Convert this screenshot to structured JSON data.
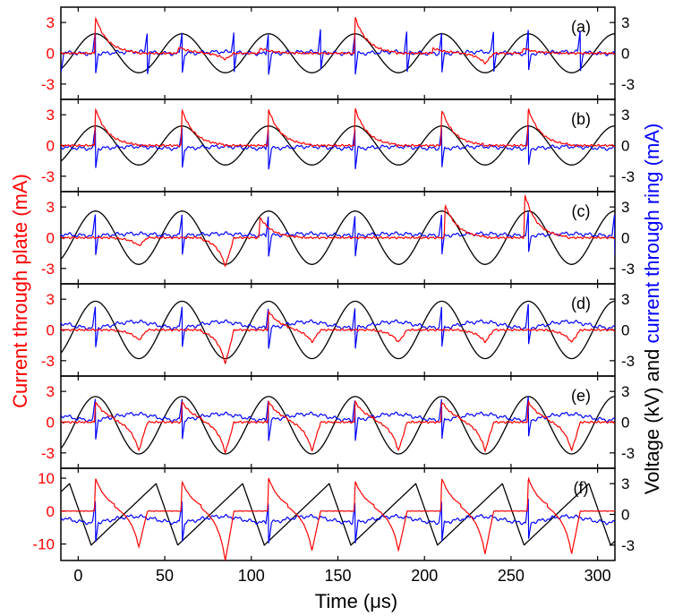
{
  "figure": {
    "xlabel": "Time (μs)",
    "ylabel_left": "Current through plate (mA)",
    "ylabel_right_part1": "Voltage (kV) and ",
    "ylabel_right_part2": "current through ring (mA)",
    "colors": {
      "plate_current": "#ff0000",
      "ring_current": "#0000ff",
      "voltage": "#000000",
      "axis": "#000000"
    }
  },
  "chart_data": [
    {
      "type": "line",
      "panel_label": "(a)",
      "x_range": [
        -10,
        310
      ],
      "x_ticks": [
        0,
        50,
        100,
        150,
        200,
        250,
        300
      ],
      "y_left": {
        "range": [
          -4.5,
          4.5
        ],
        "ticks": [
          3,
          0,
          -3
        ],
        "tick_labels": [
          "3",
          "0",
          "-3"
        ]
      },
      "y_right": {
        "range": [
          -4.5,
          4.5
        ],
        "ticks": [
          3,
          0,
          -3
        ],
        "tick_labels": [
          "3",
          "0",
          "-3"
        ]
      },
      "series": [
        {
          "role": "voltage",
          "color": "#000000",
          "period_us": 50,
          "phase_us": -2.5,
          "amplitude": 1.9,
          "offset": 0
        },
        {
          "role": "ring_current",
          "color": "#0000ff",
          "baseline": 0.05,
          "spikes_at_us": [
            -10,
            10,
            40,
            60,
            90,
            110,
            140,
            160,
            190,
            210,
            240,
            260,
            290
          ]
        },
        {
          "role": "plate_current",
          "color": "#ff0000",
          "peaks": [
            [
              10,
              3.5
            ],
            [
              58,
              0.6
            ],
            [
              105,
              0.5
            ],
            [
              160,
              3.5
            ],
            [
              205,
              0.5
            ],
            [
              257,
              0.5
            ]
          ],
          "dips": [
            [
              85,
              -0.6
            ],
            [
              235,
              -1.0
            ]
          ]
        }
      ]
    },
    {
      "type": "line",
      "panel_label": "(b)",
      "x_range": [
        -10,
        310
      ],
      "x_ticks": [
        0,
        50,
        100,
        150,
        200,
        250,
        300
      ],
      "y_left": {
        "range": [
          -4.5,
          4.5
        ],
        "ticks": [
          3,
          0,
          -3
        ],
        "tick_labels": [
          "3",
          "0",
          "-3"
        ]
      },
      "y_right": {
        "range": [
          -4.5,
          4.5
        ],
        "ticks": [
          3,
          0,
          -3
        ],
        "tick_labels": [
          "3",
          "0",
          "-3"
        ]
      },
      "series": [
        {
          "role": "voltage",
          "color": "#000000",
          "period_us": 50,
          "phase_us": -2.5,
          "amplitude": 1.9,
          "offset": 0
        },
        {
          "role": "ring_current",
          "color": "#0000ff",
          "baseline": -0.2,
          "spikes_at_us": [
            10,
            60,
            110,
            160,
            210,
            260
          ]
        },
        {
          "role": "plate_current",
          "color": "#ff0000",
          "peaks": [
            [
              10,
              3.6
            ],
            [
              60,
              3.5
            ],
            [
              110,
              3.5
            ],
            [
              160,
              3.6
            ],
            [
              210,
              3.5
            ],
            [
              260,
              3.6
            ]
          ]
        }
      ]
    },
    {
      "type": "line",
      "panel_label": "(c)",
      "x_range": [
        -10,
        310
      ],
      "x_ticks": [
        0,
        50,
        100,
        150,
        200,
        250,
        300
      ],
      "y_left": {
        "range": [
          -4.5,
          4.5
        ],
        "ticks": [
          3,
          0,
          -3
        ],
        "tick_labels": [
          "3",
          "0",
          "-3"
        ]
      },
      "y_right": {
        "range": [
          -4.5,
          4.5
        ],
        "ticks": [
          3,
          0,
          -3
        ],
        "tick_labels": [
          "3",
          "0",
          "-3"
        ]
      },
      "series": [
        {
          "role": "voltage",
          "color": "#000000",
          "period_us": 50,
          "phase_us": -2.5,
          "amplitude": 2.6,
          "offset": 0
        },
        {
          "role": "ring_current",
          "color": "#0000ff",
          "baseline": 0.3,
          "spikes_at_us": [
            10,
            60,
            110,
            160,
            210,
            260,
            310
          ]
        },
        {
          "role": "plate_current",
          "color": "#ff0000",
          "peaks": [
            [
              105,
              2.0
            ],
            [
              212,
              3.2
            ],
            [
              258,
              4.2
            ]
          ],
          "dips": [
            [
              35,
              -0.8
            ],
            [
              85,
              -2.8
            ]
          ]
        }
      ]
    },
    {
      "type": "line",
      "panel_label": "(d)",
      "x_range": [
        -10,
        310
      ],
      "x_ticks": [
        0,
        50,
        100,
        150,
        200,
        250,
        300
      ],
      "y_left": {
        "range": [
          -4.5,
          4.5
        ],
        "ticks": [
          3,
          0,
          -3
        ],
        "tick_labels": [
          "3",
          "0",
          "-3"
        ]
      },
      "y_right": {
        "range": [
          -4.5,
          4.5
        ],
        "ticks": [
          3,
          0,
          -3
        ],
        "tick_labels": [
          "3",
          "0",
          "-3"
        ]
      },
      "series": [
        {
          "role": "voltage",
          "color": "#000000",
          "period_us": 50,
          "phase_us": -2.5,
          "amplitude": 2.8,
          "offset": 0
        },
        {
          "role": "ring_current",
          "color": "#0000ff",
          "baseline": 0.5,
          "spikes_at_us": [
            10,
            60,
            110,
            160,
            210,
            260
          ]
        },
        {
          "role": "plate_current",
          "color": "#ff0000",
          "peaks": [
            [
              110,
              1.8
            ]
          ],
          "dips": [
            [
              35,
              -1.0
            ],
            [
              85,
              -3.3
            ],
            [
              135,
              -1.2
            ],
            [
              185,
              -1.2
            ],
            [
              235,
              -1.2
            ],
            [
              285,
              -1.2
            ]
          ]
        }
      ]
    },
    {
      "type": "line",
      "panel_label": "(e)",
      "x_range": [
        -10,
        310
      ],
      "x_ticks": [
        0,
        50,
        100,
        150,
        200,
        250,
        300
      ],
      "y_left": {
        "range": [
          -4.5,
          4.5
        ],
        "ticks": [
          3,
          0,
          -3
        ],
        "tick_labels": [
          "3",
          "0",
          "-3"
        ]
      },
      "y_right": {
        "range": [
          -4.5,
          4.5
        ],
        "ticks": [
          3,
          0,
          -3
        ],
        "tick_labels": [
          "3",
          "0",
          "-3"
        ]
      },
      "series": [
        {
          "role": "voltage",
          "color": "#000000",
          "period_us": 50,
          "phase_us": -2.5,
          "amplitude": 2.8,
          "offset": -0.3
        },
        {
          "role": "ring_current",
          "color": "#0000ff",
          "baseline": 0.5,
          "spikes_at_us": [
            10,
            60,
            110,
            160,
            210,
            260
          ]
        },
        {
          "role": "plate_current",
          "color": "#ff0000",
          "peaks": [
            [
              10,
              2.0
            ],
            [
              60,
              2.0
            ],
            [
              110,
              2.0
            ],
            [
              160,
              2.0
            ],
            [
              210,
              2.0
            ],
            [
              260,
              2.0
            ]
          ],
          "dips": [
            [
              35,
              -2.8
            ],
            [
              85,
              -3.0
            ],
            [
              135,
              -2.8
            ],
            [
              185,
              -2.8
            ],
            [
              235,
              -2.8
            ],
            [
              285,
              -2.8
            ]
          ]
        }
      ]
    },
    {
      "type": "line",
      "panel_label": "(f)",
      "x_range": [
        -10,
        310
      ],
      "x_ticks": [
        0,
        50,
        100,
        150,
        200,
        250,
        300
      ],
      "y_left": {
        "range": [
          -15,
          13
        ],
        "ticks": [
          10,
          0,
          -10
        ],
        "tick_labels": [
          "10",
          "0",
          "-10"
        ]
      },
      "y_right": {
        "range": [
          -4.5,
          4.5
        ],
        "ticks": [
          3,
          0,
          -3
        ],
        "tick_labels": [
          "3",
          "0",
          "-3"
        ]
      },
      "series": [
        {
          "role": "voltage",
          "color": "#000000",
          "period_us": 50,
          "phase_us": -2.5,
          "amplitude": 3.0,
          "offset": 0,
          "shape": "sawtooth"
        },
        {
          "role": "ring_current",
          "color": "#0000ff",
          "baseline": -0.5,
          "spikes_at_us": [
            10,
            60,
            110,
            160,
            210,
            260
          ]
        },
        {
          "role": "plate_current",
          "color": "#ff0000",
          "peaks": [
            [
              10,
              10
            ],
            [
              60,
              9
            ],
            [
              110,
              10
            ],
            [
              160,
              9
            ],
            [
              210,
              10
            ],
            [
              260,
              10
            ]
          ],
          "dips": [
            [
              35,
              -11
            ],
            [
              85,
              -15
            ],
            [
              135,
              -12
            ],
            [
              185,
              -12
            ],
            [
              235,
              -13
            ],
            [
              285,
              -13
            ]
          ]
        }
      ]
    }
  ]
}
